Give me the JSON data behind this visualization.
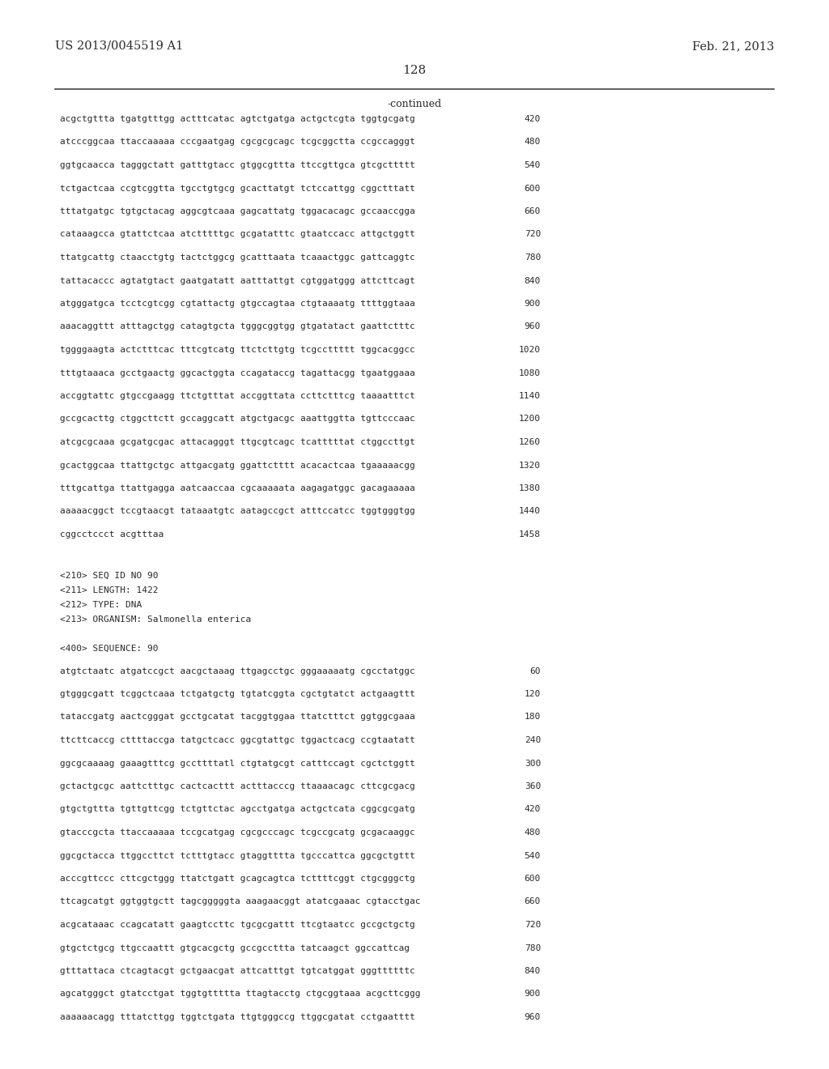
{
  "background_color": "#ffffff",
  "header_left": "US 2013/0045519 A1",
  "header_right": "Feb. 21, 2013",
  "page_number": "128",
  "continued_label": "-continued",
  "sequence_lines_part1": [
    [
      "acgctgttta tgatgtttgg actttcatac agtctgatga actgctcgta tggtgcgatg",
      "420"
    ],
    [
      "atcccggcaa ttaccaaaaa cccgaatgag cgcgcgcagc tcgcggctta ccgccagggt",
      "480"
    ],
    [
      "ggtgcaacca tagggctatt gatttgtacc gtggcgttta ttccgttgca gtcgcttttt",
      "540"
    ],
    [
      "tctgactcaa ccgtcggtta tgcctgtgcg gcacttatgt tctccattgg cggctttatt",
      "600"
    ],
    [
      "tttatgatgc tgtgctacag aggcgtcaaa gagcattatg tggacacagc gccaaccgga",
      "660"
    ],
    [
      "cataaagcca gtattctcaa atctttttgc gcgatatttc gtaatccacc attgctggtt",
      "720"
    ],
    [
      "ttatgcattg ctaacctgtg tactctggcg gcatttaata tcaaactggc gattcaggtc",
      "780"
    ],
    [
      "tattacaccc agtatgtact gaatgatatt aatttattgt cgtggatggg attcttcagt",
      "840"
    ],
    [
      "atgggatgca tcctcgtcgg cgtattactg gtgccagtaa ctgtaaaatg ttttggtaaa",
      "900"
    ],
    [
      "aaacaggttt atttagctgg catagtgcta tgggcggtgg gtgatatact gaattctttc",
      "960"
    ],
    [
      "tggggaagta actctttcac tttcgtcatg ttctcttgtg tcgccttttt tggcacggcc",
      "1020"
    ],
    [
      "tttgtaaaca gcctgaactg ggcactggta ccagataccg tagattacgg tgaatggaaa",
      "1080"
    ],
    [
      "accggtattc gtgccgaagg ttctgtttat accggttata ccttctttcg taaaatttct",
      "1140"
    ],
    [
      "gccgcacttg ctggcttctt gccaggcatt atgctgacgc aaattggtta tgttcccaac",
      "1200"
    ],
    [
      "atcgcgcaaa gcgatgcgac attacagggt ttgcgtcagc tcatttttat ctggccttgt",
      "1260"
    ],
    [
      "gcactggcaa ttattgctgc attgacgatg ggattctttt acacactcaa tgaaaaacgg",
      "1320"
    ],
    [
      "tttgcattga ttattgagga aatcaaccaa cgcaaaaata aagagatggc gacagaaaaa",
      "1380"
    ],
    [
      "aaaaacggct tccgtaacgt tataaatgtc aatagccgct atttccatcc tggtgggtgg",
      "1440"
    ],
    [
      "cggcctccct acgtttaa",
      "1458"
    ]
  ],
  "metadata_lines": [
    "<210> SEQ ID NO 90",
    "<211> LENGTH: 1422",
    "<212> TYPE: DNA",
    "<213> ORGANISM: Salmonella enterica"
  ],
  "sequence_label": "<400> SEQUENCE: 90",
  "sequence_lines_part2": [
    [
      "atgtctaatc atgatccgct aacgctaaag ttgagcctgc gggaaaaatg cgcctatggc",
      "60"
    ],
    [
      "gtgggcgatt tcggctcaaa tctgatgctg tgtatcggta cgctgtatct actgaagttt",
      "120"
    ],
    [
      "tataccgatg aactcgggat gcctgcatat tacggtggaa ttatctttct ggtggcgaaa",
      "180"
    ],
    [
      "ttcttcaccg cttttaccga tatgctcacc ggcgtattgc tggactcacg ccgtaatatt",
      "240"
    ],
    [
      "ggcgcaaaag gaaagtttcg gccttttatl ctgtatgcgt catttccagt cgctctggtt",
      "300"
    ],
    [
      "gctactgcgc aattctttgc cactcacttt actttacccg ttaaaacagc cttcgcgacg",
      "360"
    ],
    [
      "gtgctgttta tgttgttcgg tctgttctac agcctgatga actgctcata cggcgcgatg",
      "420"
    ],
    [
      "gtacccgcta ttaccaaaaa tccgcatgag cgcgcccagc tcgccgcatg gcgacaaggc",
      "480"
    ],
    [
      "ggcgctacca ttggccttct tctttgtacc gtaggtttta tgcccattca ggcgctgttt",
      "540"
    ],
    [
      "acccgttccc cttcgctggg ttatctgatt gcagcagtca tcttttcggt ctgcgggctg",
      "600"
    ],
    [
      "ttcagcatgt ggtggtgctt tagcgggggta aaagaacggt atatcgaaac cgtacctgac",
      "660"
    ],
    [
      "acgcataaac ccagcatatt gaagtccttc tgcgcgattt ttcgtaatcc gccgctgctg",
      "720"
    ],
    [
      "gtgctctgcg ttgccaattt gtgcacgctg gccgccttta tatcaagct ggccattcag",
      "780"
    ],
    [
      "gtttattaca ctcagtacgt gctgaacgat attcatttgt tgtcatggat gggttttttc",
      "840"
    ],
    [
      "agcatgggct gtatcctgat tggtgttttta ttagtacctg ctgcggtaaa acgcttcggg",
      "900"
    ],
    [
      "aaaaaacagg tttatcttgg tggtctgata ttgtgggccg ttggcgatat cctgaatttt",
      "960"
    ]
  ]
}
